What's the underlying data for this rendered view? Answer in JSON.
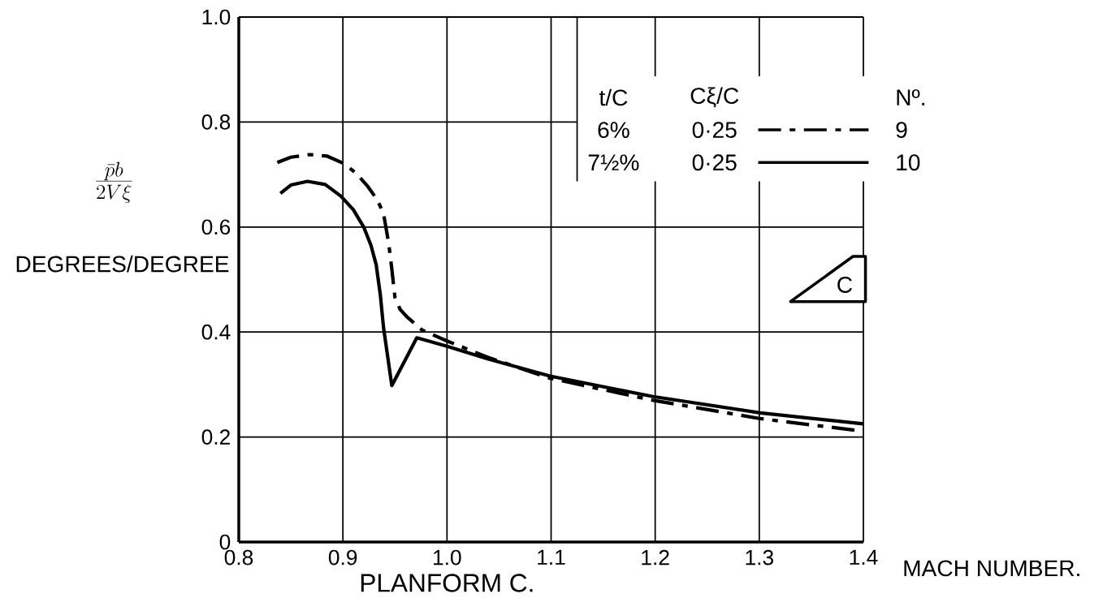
{
  "chart_data": {
    "type": "line",
    "xlabel": "MACH NUMBER.",
    "ylabel": "DEGREES/DEGREE",
    "annotations": [
      "\\frac{\\bar{p}b}{2V\\xi}",
      "PLANFORM C.",
      "t/C",
      "Cξ/C",
      "Nº.",
      "6%",
      "0·25",
      "7½%",
      "0·25",
      "C"
    ],
    "xlim": [
      0.8,
      1.4
    ],
    "ylim": [
      0,
      1.0
    ],
    "xticks": [
      0.8,
      0.9,
      {
        "value": 1.0,
        "label": "1.0"
      },
      1.1,
      1.2,
      1.3,
      1.4
    ],
    "yticks": [
      0,
      0.2,
      0.4,
      0.6,
      0.8,
      {
        "value": 1.0,
        "label": "1.0"
      }
    ],
    "grid": true,
    "legend": "top right",
    "marker": "none",
    "series": [
      {
        "name": "9",
        "color": "#000000",
        "line_style": "dashed",
        "x": [
          0.837,
          0.85,
          0.868,
          0.885,
          0.901,
          0.913,
          0.924,
          0.933,
          0.939,
          0.944,
          0.947,
          0.95,
          0.955,
          0.961,
          0.976,
          1.0,
          1.039,
          1.099,
          1.198,
          1.301,
          1.4
        ],
        "values": [
          0.723,
          0.733,
          0.738,
          0.735,
          0.721,
          0.702,
          0.677,
          0.652,
          0.626,
          0.569,
          0.52,
          0.466,
          0.443,
          0.43,
          0.404,
          0.383,
          0.352,
          0.312,
          0.27,
          0.235,
          0.211
        ]
      },
      {
        "name": "10",
        "color": "#000000",
        "line_style": "solid",
        "x": [
          0.84,
          0.85,
          0.866,
          0.883,
          0.898,
          0.91,
          0.92,
          0.927,
          0.932,
          0.936,
          0.939,
          0.947,
          0.971,
          1.0,
          1.039,
          1.099,
          1.198,
          1.301,
          1.4
        ],
        "values": [
          0.664,
          0.68,
          0.687,
          0.681,
          0.659,
          0.633,
          0.6,
          0.565,
          0.528,
          0.47,
          0.409,
          0.298,
          0.389,
          0.373,
          0.349,
          0.316,
          0.277,
          0.246,
          0.225
        ]
      }
    ]
  }
}
